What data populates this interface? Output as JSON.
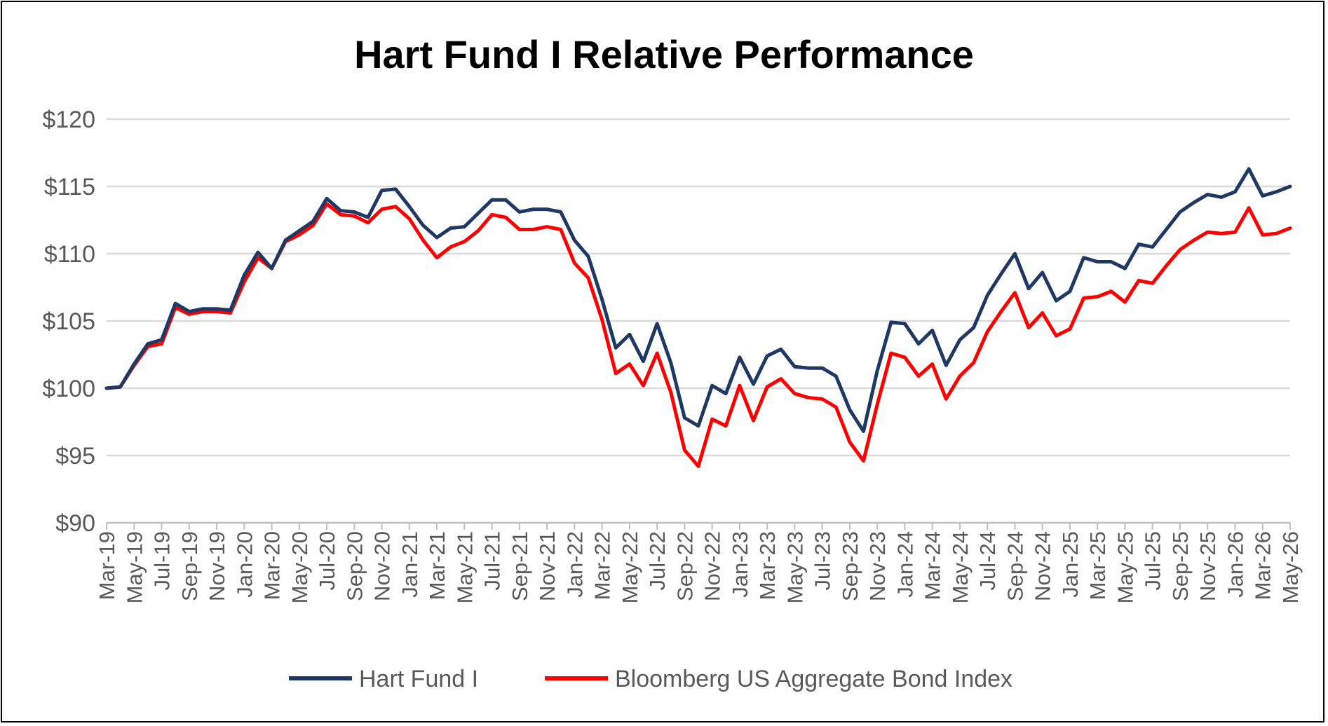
{
  "chart_data": {
    "type": "line",
    "title": "Hart Fund I Relative Performance",
    "xlabel": "",
    "ylabel": "",
    "ylim": [
      90,
      120
    ],
    "yticks": [
      90,
      95,
      100,
      105,
      110,
      115,
      120
    ],
    "ytick_labels": [
      "$90",
      "$95",
      "$100",
      "$105",
      "$110",
      "$115",
      "$120"
    ],
    "grid": true,
    "legend_position": "bottom",
    "x": [
      "Mar-19",
      "Apr-19",
      "May-19",
      "Jun-19",
      "Jul-19",
      "Aug-19",
      "Sep-19",
      "Oct-19",
      "Nov-19",
      "Dec-19",
      "Jan-20",
      "Feb-20",
      "Mar-20",
      "Apr-20",
      "May-20",
      "Jun-20",
      "Jul-20",
      "Aug-20",
      "Sep-20",
      "Oct-20",
      "Nov-20",
      "Dec-20",
      "Jan-21",
      "Feb-21",
      "Mar-21",
      "Apr-21",
      "May-21",
      "Jun-21",
      "Jul-21",
      "Aug-21",
      "Sep-21",
      "Oct-21",
      "Nov-21",
      "Dec-21",
      "Jan-22",
      "Feb-22",
      "Mar-22",
      "Apr-22",
      "May-22",
      "Jun-22",
      "Jul-22",
      "Aug-22",
      "Sep-22",
      "Oct-22",
      "Nov-22",
      "Dec-22",
      "Jan-23",
      "Feb-23",
      "Mar-23",
      "Apr-23",
      "May-23",
      "Jun-23",
      "Jul-23",
      "Aug-23",
      "Sep-23",
      "Oct-23",
      "Nov-23",
      "Dec-23",
      "Jan-24",
      "Feb-24",
      "Mar-24",
      "Apr-24",
      "May-24",
      "Jun-24",
      "Jul-24",
      "Aug-24",
      "Sep-24",
      "Oct-24",
      "Nov-24",
      "Dec-24",
      "Jan-25",
      "Feb-25",
      "Mar-25",
      "Apr-25",
      "May-25",
      "Jun-25",
      "Jul-25",
      "Aug-25",
      "Sep-25",
      "Oct-25",
      "Nov-25",
      "Dec-25",
      "Jan-26",
      "Feb-26",
      "Mar-26",
      "Apr-26",
      "May-26"
    ],
    "x_tick_labels": [
      "Mar-19",
      "May-19",
      "Jul-19",
      "Sep-19",
      "Nov-19",
      "Jan-20",
      "Mar-20",
      "May-20",
      "Jul-20",
      "Sep-20",
      "Nov-20",
      "Jan-21",
      "Mar-21",
      "May-21",
      "Jul-21",
      "Sep-21",
      "Nov-21",
      "Jan-22",
      "Mar-22",
      "May-22",
      "Jul-22",
      "Sep-22",
      "Nov-22",
      "Jan-23",
      "Mar-23",
      "May-23",
      "Jul-23",
      "Sep-23",
      "Nov-23",
      "Jan-24",
      "Mar-24",
      "May-24",
      "Jul-24",
      "Sep-24",
      "Nov-24",
      "Jan-25",
      "Mar-25",
      "May-25",
      "Jul-25",
      "Sep-25",
      "Nov-25",
      "Jan-26",
      "Mar-26",
      "May-26"
    ],
    "series": [
      {
        "name": "Hart Fund I",
        "color": "#1f3864",
        "values": [
          100.0,
          100.1,
          101.8,
          103.3,
          103.6,
          106.3,
          105.7,
          105.9,
          105.9,
          105.8,
          108.4,
          110.1,
          108.9,
          111.0,
          111.7,
          112.4,
          114.1,
          113.2,
          113.1,
          112.7,
          114.7,
          114.8,
          113.5,
          112.1,
          111.2,
          111.9,
          112.0,
          113.0,
          114.0,
          114.0,
          113.1,
          113.3,
          113.3,
          113.1,
          111.0,
          109.8,
          106.6,
          103.0,
          104.0,
          102.0,
          104.8,
          101.9,
          97.8,
          97.2,
          100.2,
          99.6,
          102.3,
          100.3,
          102.4,
          102.9,
          101.6,
          101.5,
          101.5,
          100.9,
          98.4,
          96.8,
          101.3,
          104.9,
          104.8,
          103.3,
          104.3,
          101.7,
          103.6,
          104.5,
          106.9,
          108.5,
          110.0,
          107.4,
          108.6,
          106.5,
          107.2,
          109.7,
          109.4,
          109.4,
          108.9,
          110.7,
          110.5,
          111.8,
          113.1,
          113.8,
          114.4,
          114.2,
          114.6,
          116.3,
          114.3,
          114.6,
          115.0
        ]
      },
      {
        "name": "Bloomberg US Aggregate Bond Index",
        "color": "#ff0000",
        "values": [
          100.0,
          100.1,
          101.7,
          103.1,
          103.3,
          106.0,
          105.5,
          105.7,
          105.7,
          105.6,
          107.9,
          109.7,
          108.9,
          110.9,
          111.4,
          112.1,
          113.7,
          112.9,
          112.8,
          112.3,
          113.3,
          113.5,
          112.6,
          111.0,
          109.7,
          110.5,
          110.9,
          111.7,
          112.9,
          112.7,
          111.8,
          111.8,
          112.0,
          111.8,
          109.3,
          108.2,
          105.1,
          101.1,
          101.8,
          100.2,
          102.6,
          99.7,
          95.4,
          94.2,
          97.7,
          97.2,
          100.2,
          97.6,
          100.1,
          100.7,
          99.6,
          99.3,
          99.2,
          98.6,
          96.0,
          94.6,
          98.8,
          102.6,
          102.3,
          100.9,
          101.8,
          99.2,
          100.9,
          101.9,
          104.2,
          105.7,
          107.1,
          104.5,
          105.6,
          103.9,
          104.4,
          106.7,
          106.8,
          107.2,
          106.4,
          108.0,
          107.8,
          109.1,
          110.3,
          111.0,
          111.6,
          111.5,
          111.6,
          113.4,
          111.4,
          111.5,
          111.9
        ]
      }
    ]
  }
}
